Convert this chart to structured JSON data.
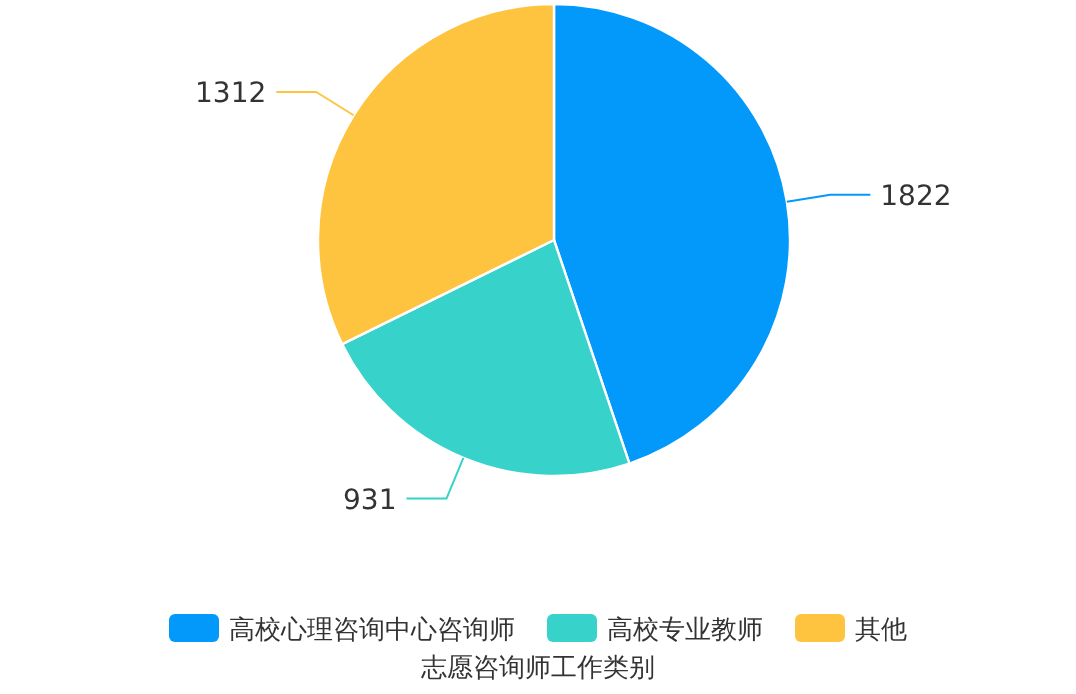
{
  "chart_data": {
    "type": "pie",
    "categories": [
      "高校心理咨询中心咨询师",
      "高校专业教师",
      "其他"
    ],
    "values": [
      1822,
      931,
      1312
    ],
    "colors": [
      "#0399fb",
      "#37d2ca",
      "#fec43f"
    ],
    "data_labels": true,
    "legend": "bottom",
    "legend_title": "志愿咨询师工作类别"
  }
}
